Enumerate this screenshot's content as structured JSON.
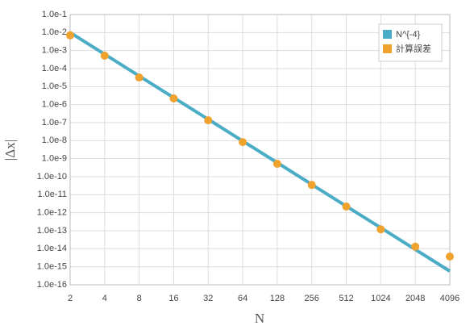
{
  "chart_data": {
    "type": "line",
    "xlabel": "N",
    "ylabel": "|Δx|",
    "x": [
      2,
      4,
      8,
      16,
      32,
      64,
      128,
      256,
      512,
      1024,
      2048,
      4096
    ],
    "series": [
      {
        "name": "N^{-4}",
        "color": "#4bacc6",
        "mode": "lines",
        "values": [
          0.01,
          0.000625,
          3.9e-05,
          2.44e-06,
          1.53e-07,
          9.5e-09,
          6e-10,
          3.7e-11,
          2.3e-12,
          1.46e-13,
          9.1e-15,
          5.7e-16
        ]
      },
      {
        "name": "計算誤差",
        "color": "#f0a22e",
        "mode": "markers",
        "values": [
          0.007,
          0.00052,
          3.2e-05,
          2.2e-06,
          1.35e-07,
          8.3e-09,
          5.2e-10,
          3.5e-11,
          2.2e-12,
          1.2e-13,
          1.3e-14,
          3.7e-15
        ]
      }
    ],
    "xscale": "log",
    "yscale": "log",
    "xlim": [
      2,
      4096
    ],
    "ylim": [
      1e-16,
      0.1
    ],
    "xticks": [
      2,
      4,
      8,
      16,
      32,
      64,
      128,
      256,
      512,
      1024,
      2048,
      4096
    ],
    "yticks": [
      {
        "value": 1e-16,
        "label": "1.0e-16"
      },
      {
        "value": 1e-15,
        "label": "1.0e-15"
      },
      {
        "value": 1e-14,
        "label": "1.0e-14"
      },
      {
        "value": 1e-13,
        "label": "1.0e-13"
      },
      {
        "value": 1e-12,
        "label": "1.0e-12"
      },
      {
        "value": 1e-11,
        "label": "1.0e-11"
      },
      {
        "value": 1e-10,
        "label": "1.0e-10"
      },
      {
        "value": 1e-09,
        "label": "1.0e-9"
      },
      {
        "value": 1e-08,
        "label": "1.0e-8"
      },
      {
        "value": 1e-07,
        "label": "1.0e-7"
      },
      {
        "value": 1e-06,
        "label": "1.0e-6"
      },
      {
        "value": 1e-05,
        "label": "1.0e-5"
      },
      {
        "value": 0.0001,
        "label": "1.0e-4"
      },
      {
        "value": 0.001,
        "label": "1.0e-3"
      },
      {
        "value": 0.01,
        "label": "1.0e-2"
      },
      {
        "value": 0.1,
        "label": "1.0e-1"
      }
    ],
    "grid": true,
    "legend": "top-right"
  }
}
